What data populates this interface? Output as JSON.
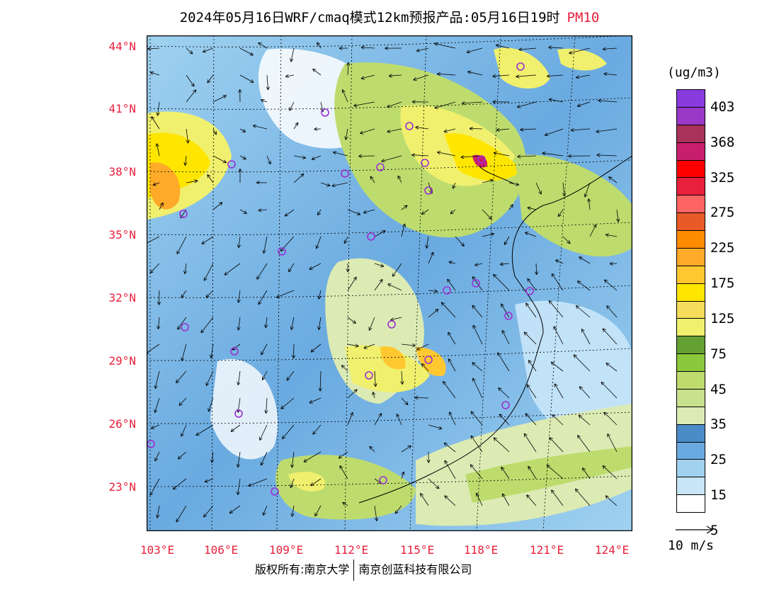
{
  "title": {
    "text": "2024年05月16日WRF/cmaq模式12km预报产品:05月16日19时",
    "variable": "PM10"
  },
  "map": {
    "lat_labels": [
      "44°N",
      "41°N",
      "38°N",
      "35°N",
      "32°N",
      "29°N",
      "26°N",
      "23°N"
    ],
    "lon_labels": [
      "103°E",
      "106°E",
      "109°E",
      "112°E",
      "115°E",
      "118°E",
      "121°E",
      "124°E"
    ],
    "station_color": "#9b30d0"
  },
  "colorbar": {
    "units": "(ug/m3)",
    "colors": [
      "#8a3be0",
      "#9a38c8",
      "#a8325a",
      "#c81e6e",
      "#ff0000",
      "#e8203c",
      "#ff6464",
      "#e85a28",
      "#ff8c00",
      "#ffaa28",
      "#ffc830",
      "#ffe600",
      "#f5dc5a",
      "#f0f06e",
      "#64a032",
      "#8cc83c",
      "#bedc6e",
      "#c8e18c",
      "#dcebb4",
      "#4a8cc8",
      "#6aaae0",
      "#a0d2f0",
      "#c8e6f8",
      "#ffffff"
    ],
    "labels": [
      "403",
      "368",
      "325",
      "275",
      "225",
      "175",
      "125",
      "75",
      "45",
      "35",
      "25",
      "15",
      "5"
    ]
  },
  "wind_reference": {
    "label": "10 m/s"
  },
  "footer": {
    "copyright": "版权所有:南京大学",
    "company": "南京创蓝科技有限公司"
  }
}
